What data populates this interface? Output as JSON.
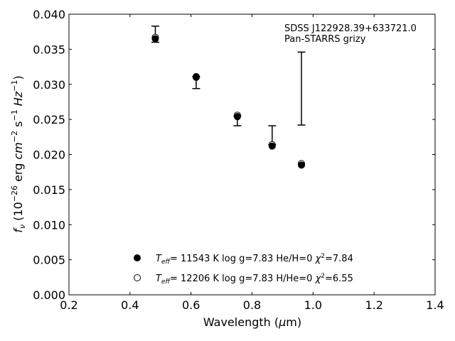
{
  "chart_data": {
    "type": "scatter",
    "annotation": [
      "SDSS J122928.39+633721.0",
      "Pan-STARRS grizy"
    ],
    "xlabel_main": "Wavelength (",
    "xlabel_mu": "μ",
    "xlabel_tail": "m)",
    "ylabel": {
      "f": "f",
      "nu": "ν",
      "units_a": " (10",
      "exp1": "−26",
      "units_b": " erg ",
      "cm": "cm",
      "exp2": "−2",
      "s": " s",
      "exp3": "−1",
      "hz": " Hz",
      "exp4": "−1",
      "close": ")"
    },
    "xlim": [
      0.2,
      1.4
    ],
    "ylim": [
      0.0,
      0.04
    ],
    "x_ticks": [
      "0.2",
      "0.4",
      "0.6",
      "0.8",
      "1.0",
      "1.2",
      "1.4"
    ],
    "y_ticks": [
      "0.000",
      "0.005",
      "0.010",
      "0.015",
      "0.020",
      "0.025",
      "0.030",
      "0.035",
      "0.040"
    ],
    "observed": {
      "x": [
        0.483,
        0.617,
        0.752,
        0.866,
        0.962
      ],
      "y_low": [
        0.036,
        0.0294,
        0.0241,
        0.0214,
        0.0242
      ],
      "y_high": [
        0.0383,
        0.0311,
        0.0255,
        0.0241,
        0.0346
      ]
    },
    "series": [
      {
        "name": "He/H=0",
        "marker": "filled",
        "x": [
          0.483,
          0.617,
          0.752,
          0.866,
          0.962
        ],
        "y": [
          0.0365,
          0.031,
          0.0254,
          0.0212,
          0.0185
        ]
      },
      {
        "name": "H/He=0",
        "marker": "open",
        "x": [
          0.483,
          0.617,
          0.752,
          0.866,
          0.962
        ],
        "y": [
          0.0367,
          0.0311,
          0.0256,
          0.0214,
          0.0187
        ]
      }
    ],
    "legend": [
      {
        "marker": "filled",
        "T": "T",
        "eff": "eff",
        "rest": "= 11543 K  log g=7.83  He/H=0  ",
        "chi": "χ",
        "sup": "2",
        "chi_val": "=7.84"
      },
      {
        "marker": "open",
        "T": "T",
        "eff": "eff",
        "rest": "= 12206 K  log g=7.83  H/He=0  ",
        "chi": "χ",
        "sup": "2",
        "chi_val": "=6.55"
      }
    ]
  }
}
